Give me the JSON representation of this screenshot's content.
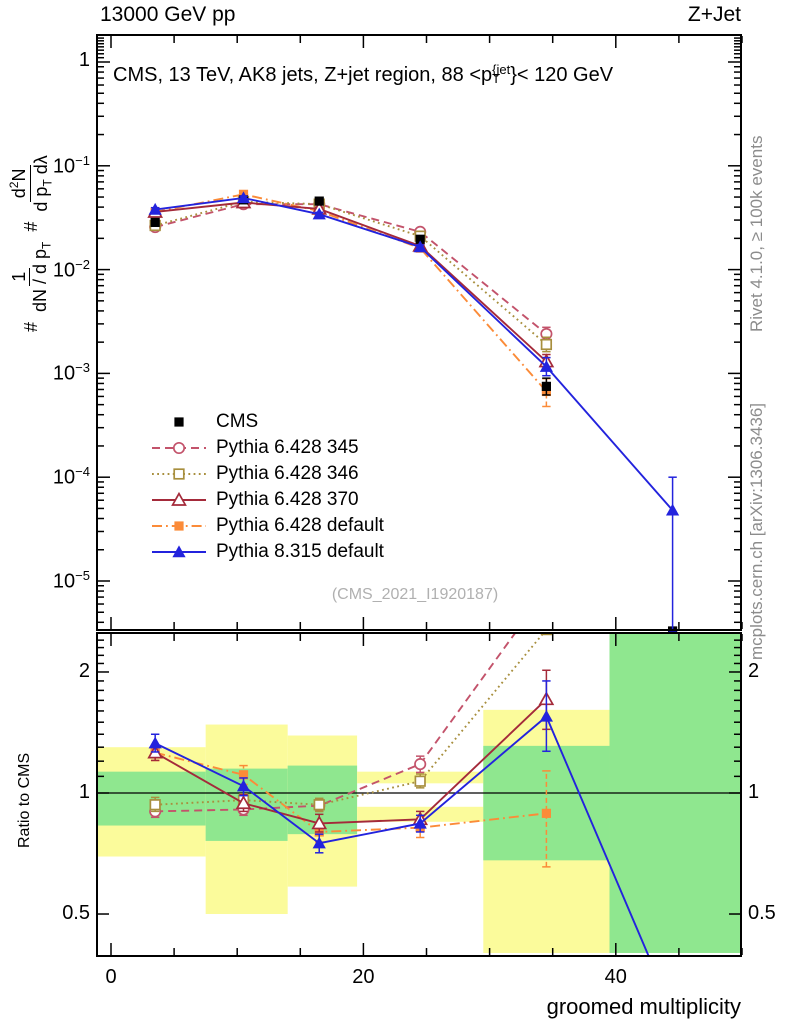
{
  "header": {
    "beam": "13000 GeV pp",
    "process": "Z+Jet"
  },
  "panel_title": {
    "part1": "CMS, 13 TeV, AK8 jets, Z+jet region, 88 <p",
    "sup": "{jet",
    "sub": "T",
    "part2": "}< 120 GeV"
  },
  "watermark": "(CMS_2021_I1920187)",
  "side_notes": {
    "rivet": "Rivet 4.1.0, ≥ 100k events",
    "mcplots": "mcplots.cern.ch [arXiv:1306.3436]"
  },
  "axes": {
    "main_y_label": {
      "prefix": "#",
      "frac1": {
        "num": "1",
        "den_pre": "dN / d p",
        "den_sub": "T"
      },
      "frac2": {
        "num_pre": "d",
        "num_sup": "2",
        "num_post": "N",
        "den_pre": "d p",
        "den_sub": "T",
        "den_post": " dλ"
      }
    },
    "ratio_y_label": "Ratio to CMS",
    "x_label": "groomed multiplicity",
    "x_range": [
      -1.1,
      50
    ],
    "x_major_ticks": [
      {
        "v": 0,
        "label": "0"
      },
      {
        "v": 20,
        "label": "20"
      },
      {
        "v": 40,
        "label": "40"
      }
    ],
    "x_minor_step": 5,
    "main_y_range": [
      3.3e-06,
      1.82
    ],
    "main_y_ticks": [
      {
        "v": 1,
        "base": "1",
        "exp": null
      },
      {
        "v": 0.1,
        "base": "10",
        "exp": "−1"
      },
      {
        "v": 0.01,
        "base": "10",
        "exp": "−2"
      },
      {
        "v": 0.001,
        "base": "10",
        "exp": "−3"
      },
      {
        "v": 0.0001,
        "base": "10",
        "exp": "−4"
      },
      {
        "v": 1e-05,
        "base": "10",
        "exp": "−5"
      }
    ],
    "ratio_y_range": [
      0.4,
      2.5
    ],
    "ratio_y_ticks": [
      {
        "v": 2,
        "label": "2"
      },
      {
        "v": 1,
        "label": "1"
      },
      {
        "v": 0.5,
        "label": "0.5"
      }
    ]
  },
  "legend": [
    {
      "series": "cms",
      "label": "CMS"
    },
    {
      "series": "pythia6_345",
      "label": "Pythia 6.428 345"
    },
    {
      "series": "pythia6_346",
      "label": "Pythia 6.428 346"
    },
    {
      "series": "pythia6_370",
      "label": "Pythia 6.428 370"
    },
    {
      "series": "pythia6_default",
      "label": "Pythia 6.428 default"
    },
    {
      "series": "pythia8_default",
      "label": "Pythia 8.315 default"
    }
  ],
  "chart_data": {
    "type": "line",
    "title": "CMS, 13 TeV, AK8 jets, Z+jet region, 88 <pT{jet}< 120 GeV",
    "xlabel": "groomed multiplicity",
    "ylabel_main": "# 1/(dN/dpT) # d2N/(dpT dlambda)",
    "ylabel_ratio": "Ratio to CMS",
    "x": [
      3.5,
      10.5,
      16.5,
      24.5,
      34.5,
      44.5
    ],
    "bin_edges": [
      -1.1,
      7.5,
      14,
      19.5,
      29.5,
      39.5,
      50
    ],
    "colors": {
      "band_yellow": "#fbfb9b",
      "band_green": "#8fe78f"
    },
    "draw_order": [
      "pythia6_345",
      "pythia6_346",
      "pythia6_default",
      "pythia6_370",
      "cms",
      "pythia8_default"
    ],
    "series": {
      "cms": {
        "name": "CMS",
        "color": "#000000",
        "linestyle": "none",
        "marker": "square-filled",
        "main": [
          0.0285,
          0.047,
          0.0457,
          0.0196,
          0.00075,
          3.3e-06
        ],
        "main_err": [
          [
            0.0272,
            0.0298
          ],
          [
            0.0452,
            0.0488
          ],
          [
            0.0438,
            0.0476
          ],
          [
            0.0186,
            0.0206
          ],
          [
            0.00062,
            0.0009
          ],
          null
        ],
        "ratio": null,
        "ratio_err": null
      },
      "pythia6_345": {
        "name": "Pythia 6.428 345",
        "color": "#c3536b",
        "linestyle": "dashed",
        "marker": "circle-open",
        "main": [
          0.0257,
          0.0427,
          0.0427,
          0.0231,
          0.0024,
          null
        ],
        "main_err": [
          [
            0.0247,
            0.0267
          ],
          [
            0.0411,
            0.0443
          ],
          [
            0.0411,
            0.0443
          ],
          [
            0.0221,
            0.0241
          ],
          [
            0.00205,
            0.00278
          ],
          null
        ],
        "ratio": [
          0.9,
          0.91,
          0.93,
          1.18,
          3.2,
          null
        ],
        "ratio_err": [
          [
            0.87,
            0.935
          ],
          [
            0.88,
            0.945
          ],
          [
            0.9,
            0.965
          ],
          [
            1.125,
            1.235
          ],
          null,
          null
        ]
      },
      "pythia6_346": {
        "name": "Pythia 6.428 346",
        "color": "#a88f3e",
        "linestyle": "dotted",
        "marker": "square-open",
        "main": [
          0.0266,
          0.0451,
          0.0427,
          0.021,
          0.0019,
          null
        ],
        "main_err": [
          [
            0.0255,
            0.0277
          ],
          [
            0.0434,
            0.0468
          ],
          [
            0.0411,
            0.0443
          ],
          [
            0.0201,
            0.0219
          ],
          [
            0.00162,
            0.00223
          ],
          null
        ],
        "ratio": [
          0.935,
          0.96,
          0.935,
          1.07,
          2.55,
          null
        ],
        "ratio_err": [
          [
            0.9,
            0.975
          ],
          [
            0.925,
            0.995
          ],
          [
            0.9,
            0.97
          ],
          [
            1.03,
            1.115
          ],
          null,
          null
        ]
      },
      "pythia6_370": {
        "name": "Pythia 6.428 370",
        "color": "#a42a3a",
        "linestyle": "solid",
        "marker": "triangle-open",
        "main": [
          0.0359,
          0.0443,
          0.0384,
          0.0169,
          0.0013,
          null
        ],
        "main_err": [
          [
            0.0344,
            0.0374
          ],
          [
            0.0426,
            0.0461
          ],
          [
            0.0369,
            0.04
          ],
          [
            0.0161,
            0.0177
          ],
          [
            0.0011,
            0.00152
          ],
          null
        ],
        "ratio": [
          1.26,
          0.943,
          0.84,
          0.86,
          1.71,
          null
        ],
        "ratio_err": [
          [
            1.205,
            1.315
          ],
          [
            0.9,
            0.99
          ],
          [
            0.8,
            0.885
          ],
          [
            0.82,
            0.9
          ],
          [
            1.44,
            2.02
          ],
          null
        ]
      },
      "pythia6_default": {
        "name": "Pythia 6.428 default",
        "color": "#fb8b38",
        "linestyle": "dashdot",
        "marker": "square-filled",
        "main": [
          0.0359,
          0.0531,
          0.0366,
          0.0161,
          0.00067,
          null
        ],
        "main_err": [
          [
            0.0344,
            0.0374
          ],
          [
            0.0509,
            0.0553
          ],
          [
            0.0351,
            0.0381
          ],
          [
            0.0153,
            0.0169
          ],
          [
            0.00048,
            0.00089
          ],
          null
        ],
        "ratio": [
          1.26,
          1.11,
          0.8,
          0.82,
          0.89,
          null
        ],
        "ratio_err": [
          [
            1.205,
            1.315
          ],
          [
            1.05,
            1.17
          ],
          [
            0.755,
            0.845
          ],
          [
            0.775,
            0.865
          ],
          [
            0.655,
            1.135
          ],
          null
        ]
      },
      "pythia8_default": {
        "name": "Pythia 8.315 default",
        "color": "#2323dd",
        "linestyle": "solid",
        "marker": "triangle-filled",
        "main": [
          0.0379,
          0.049,
          0.0342,
          0.0165,
          0.00116,
          4.8e-05
        ],
        "main_err": [
          [
            0.0364,
            0.0395
          ],
          [
            0.047,
            0.051
          ],
          [
            0.0328,
            0.0356
          ],
          [
            0.0157,
            0.0173
          ],
          [
            0.00095,
            0.00142
          ],
          [
            3.3e-06,
            0.0001
          ]
        ],
        "ratio": [
          1.33,
          1.04,
          0.75,
          0.84,
          1.55,
          0.285
        ],
        "ratio_err": [
          [
            1.265,
            1.4
          ],
          [
            0.985,
            1.09
          ],
          [
            0.71,
            0.79
          ],
          [
            0.8,
            0.88
          ],
          [
            1.27,
            1.9
          ],
          null
        ]
      }
    },
    "ratio_bands": [
      {
        "x": [
          -1.1,
          7.5
        ],
        "yellow": [
          [
            0.695,
            1.3
          ]
        ],
        "green": [
          0.83,
          1.13
        ]
      },
      {
        "x": [
          7.5,
          14
        ],
        "yellow": [
          [
            0.5,
            1.48
          ]
        ],
        "green": [
          0.76,
          1.15
        ]
      },
      {
        "x": [
          14,
          19.5
        ],
        "yellow": [
          [
            0.585,
            1.39
          ]
        ],
        "green": [
          0.79,
          1.17
        ]
      },
      {
        "x": [
          19.5,
          29.5
        ],
        "yellow": [
          [
            0.848,
            0.924
          ],
          [
            1.057,
            1.13
          ]
        ],
        "green": null
      },
      {
        "x": [
          29.5,
          39.5
        ],
        "yellow": [
          [
            0.4,
            1.61
          ]
        ],
        "green": [
          0.68,
          1.31
        ]
      },
      {
        "x": [
          39.5,
          50
        ],
        "yellow": [],
        "green": [
          0.4,
          2.5
        ]
      }
    ],
    "ratio_reference": 1.0
  }
}
